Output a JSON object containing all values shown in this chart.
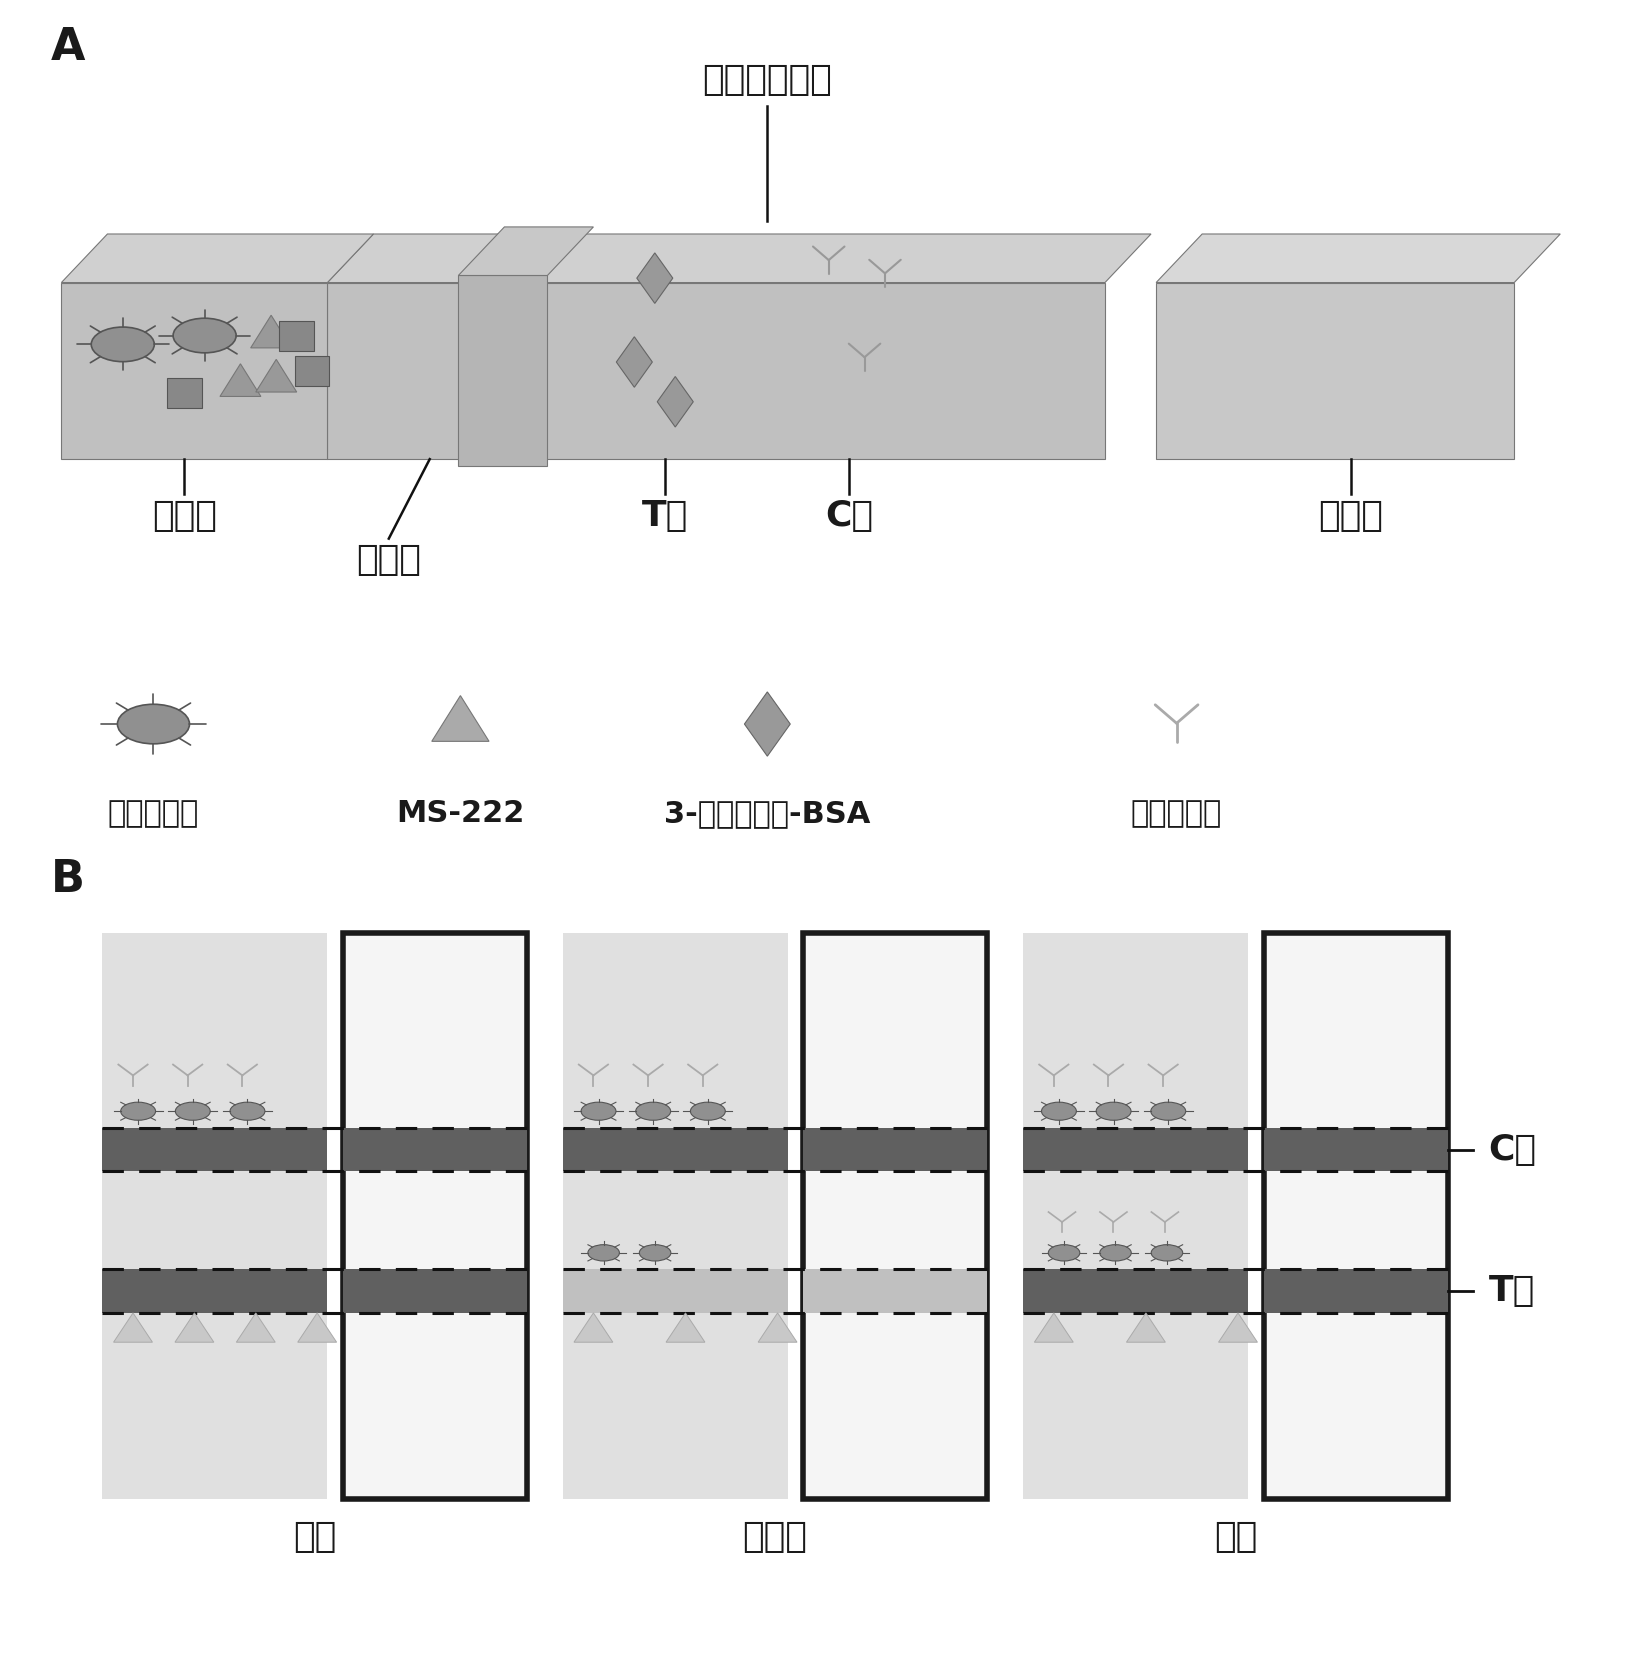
{
  "bg_color": "#ffffff",
  "label_A": "A",
  "label_B": "B",
  "text_color": "#1a1a1a",
  "label_fontsize": 32,
  "chinese_fontsize": 26,
  "small_fontsize": 22,
  "bold_fontsize": 26,
  "section_labels": [
    "样品垫",
    "结合垫",
    "T线",
    "C线",
    "吸水垫",
    "硝酸纤维素膜"
  ],
  "legend_labels": [
    "磁纳米探针",
    "MS-222",
    "3-氨基苯甲酸-BSA",
    "羊抗鼠二抗"
  ],
  "panel_b_labels": [
    "阳性",
    "弱阳性",
    "阴性"
  ],
  "c_line_label": "C线",
  "t_line_label": "T线"
}
